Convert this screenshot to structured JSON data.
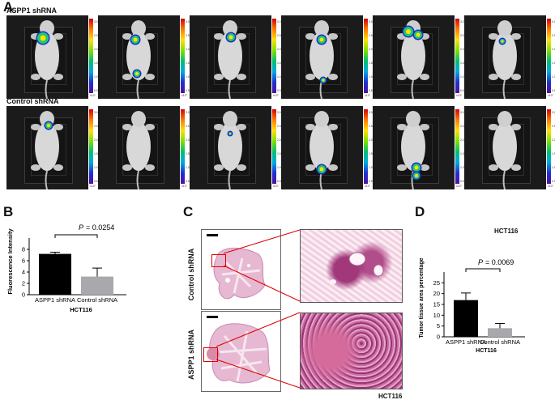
{
  "panels": {
    "a": "A",
    "b": "B",
    "c": "C",
    "d": "D"
  },
  "panel_a": {
    "group1_label": "ASPP1 shRNA",
    "group2_label": "Control shRNA",
    "colorbar_unit": "x10⁷",
    "colorbar_ticks": [
      "3.0",
      "2.5",
      "2.0",
      "1.5",
      "1.0",
      "0.5"
    ]
  },
  "panel_c": {
    "row1_label": "Control shRNA",
    "row2_label": "ASPP1 shRNA",
    "cell_line": "HCT116"
  },
  "panel_d_cell_line": "HCT116",
  "chart_data": [
    {
      "type": "bar",
      "categories": [
        "ASPP1 shRNA",
        "Control shRNA"
      ],
      "values": [
        7.2,
        3.2
      ],
      "errors": [
        0.3,
        1.5
      ],
      "colors": [
        "#000000",
        "#a8a8ad"
      ],
      "ylabel": "Fluorescence Intensity",
      "xlabel": "HCT116",
      "ylim": [
        0,
        10
      ],
      "yticks": [
        "0",
        "2",
        "4",
        "6",
        "8"
      ],
      "annotation": {
        "p_label": "P",
        "p_value": "= 0.0254"
      }
    },
    {
      "type": "bar",
      "categories": [
        "ASPP1 shRNA",
        "Control shRNA"
      ],
      "values": [
        17,
        4
      ],
      "errors": [
        3.3,
        2.2
      ],
      "colors": [
        "#000000",
        "#a8a8ad"
      ],
      "ylabel": "Tumor tissue area percentage",
      "xlabel": "HCT116",
      "ylim": [
        0,
        30
      ],
      "yticks": [
        "0",
        "5",
        "10",
        "15",
        "20",
        "25"
      ],
      "annotation": {
        "p_label": "P",
        "p_value": "= 0.0069"
      }
    }
  ]
}
